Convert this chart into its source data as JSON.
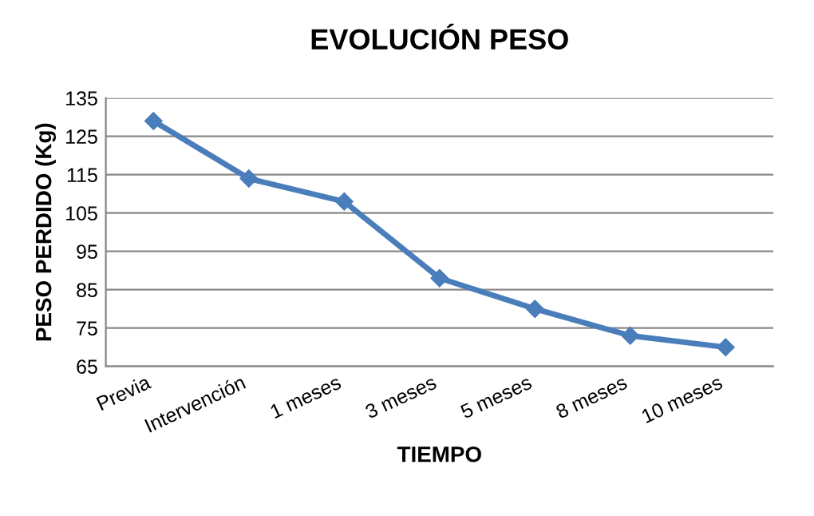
{
  "chart_data": {
    "type": "line",
    "title": "EVOLUCIÓN PESO",
    "xlabel": "TIEMPO",
    "ylabel": "PESO PERDIDO (Kg)",
    "categories": [
      "Previa",
      "Intervención",
      "1 meses",
      "3 meses",
      "5 meses",
      "8 meses",
      "10 meses"
    ],
    "series": [
      {
        "color": "#4a7ebb",
        "values": [
          129,
          114,
          108,
          88,
          80,
          73,
          70
        ]
      }
    ],
    "ylim": [
      65,
      135
    ],
    "yticks": [
      65,
      75,
      85,
      95,
      105,
      115,
      125,
      135
    ],
    "grid": "y",
    "marker": "diamond",
    "line_style": "solid"
  }
}
